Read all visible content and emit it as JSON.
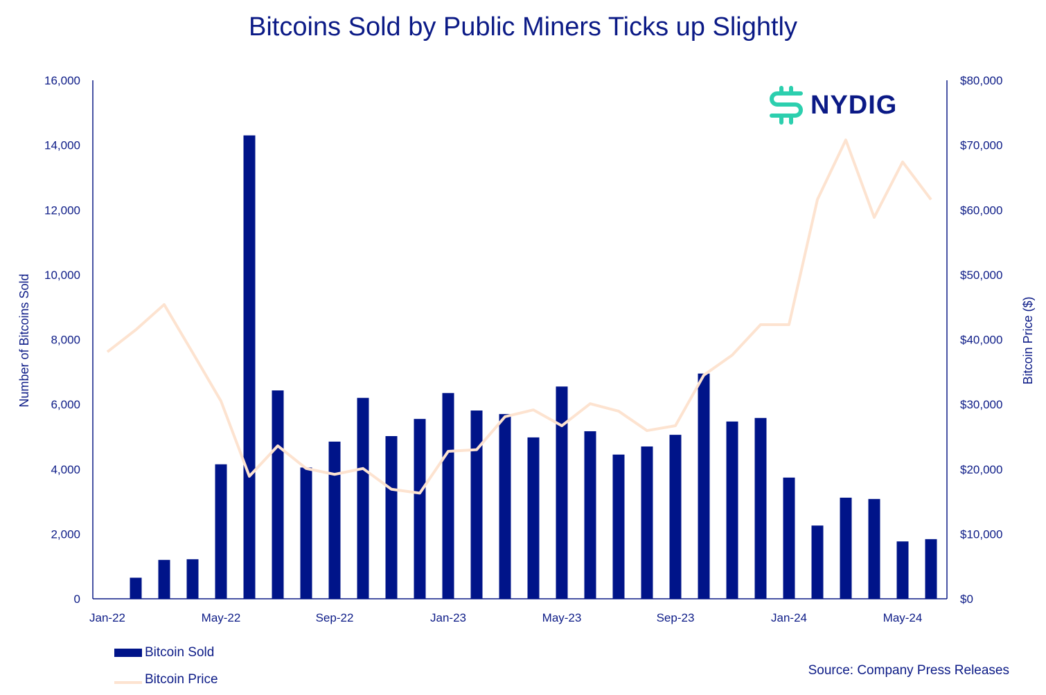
{
  "chart_data": {
    "type": "bar+line",
    "title": "Bitcoins Sold by Public Miners Ticks up Slightly",
    "ylabel_left": "Number of Bitcoins Sold",
    "ylabel_right": "Bitcoin Price ($)",
    "ylim_left": [
      0,
      16000
    ],
    "ylim_right": [
      0,
      80000
    ],
    "yticks_left": [
      "0",
      "2,000",
      "4,000",
      "6,000",
      "8,000",
      "10,000",
      "12,000",
      "14,000",
      "16,000"
    ],
    "yticks_right": [
      "$0",
      "$10,000",
      "$20,000",
      "$30,000",
      "$40,000",
      "$50,000",
      "$60,000",
      "$70,000",
      "$80,000"
    ],
    "xtick_labels": [
      {
        "label": "Jan-22",
        "index": 0
      },
      {
        "label": "May-22",
        "index": 4
      },
      {
        "label": "Sep-22",
        "index": 8
      },
      {
        "label": "Jan-23",
        "index": 12
      },
      {
        "label": "May-23",
        "index": 16
      },
      {
        "label": "Sep-23",
        "index": 20
      },
      {
        "label": "Jan-24",
        "index": 24
      },
      {
        "label": "May-24",
        "index": 28
      }
    ],
    "categories": [
      "Jan-22",
      "Feb-22",
      "Mar-22",
      "Apr-22",
      "May-22",
      "Jun-22",
      "Jul-22",
      "Aug-22",
      "Sep-22",
      "Oct-22",
      "Nov-22",
      "Dec-22",
      "Jan-23",
      "Feb-23",
      "Mar-23",
      "Apr-23",
      "May-23",
      "Jun-23",
      "Jul-23",
      "Aug-23",
      "Sep-23",
      "Oct-23",
      "Nov-23",
      "Dec-23",
      "Jan-24",
      "Feb-24",
      "Mar-24",
      "Apr-24",
      "May-24",
      "Jun-24"
    ],
    "series": [
      {
        "name": "Bitcoin Sold",
        "type": "bar",
        "axis": "left",
        "color": "#001489",
        "values": [
          0,
          650,
          1200,
          1220,
          4150,
          14300,
          6430,
          4050,
          4850,
          6200,
          5020,
          5550,
          6350,
          5810,
          5700,
          4980,
          6550,
          5170,
          4450,
          4700,
          5060,
          6950,
          5470,
          5580,
          3740,
          2260,
          3120,
          3080,
          1770,
          1840
        ]
      },
      {
        "name": "Bitcoin Price",
        "type": "line",
        "axis": "right",
        "color": "#fde3d0",
        "values": [
          38100,
          41500,
          45400,
          38000,
          30500,
          18900,
          23600,
          20100,
          19200,
          20100,
          16900,
          16300,
          22750,
          23000,
          28100,
          29150,
          26700,
          30100,
          28950,
          25950,
          26700,
          34500,
          37600,
          42300,
          42300,
          61600,
          70800,
          58850,
          67400,
          61600
        ]
      }
    ],
    "legend": "bottom-left",
    "grid": false
  },
  "source": "Source: Company Press Releases",
  "logo_text": "NYDIG"
}
